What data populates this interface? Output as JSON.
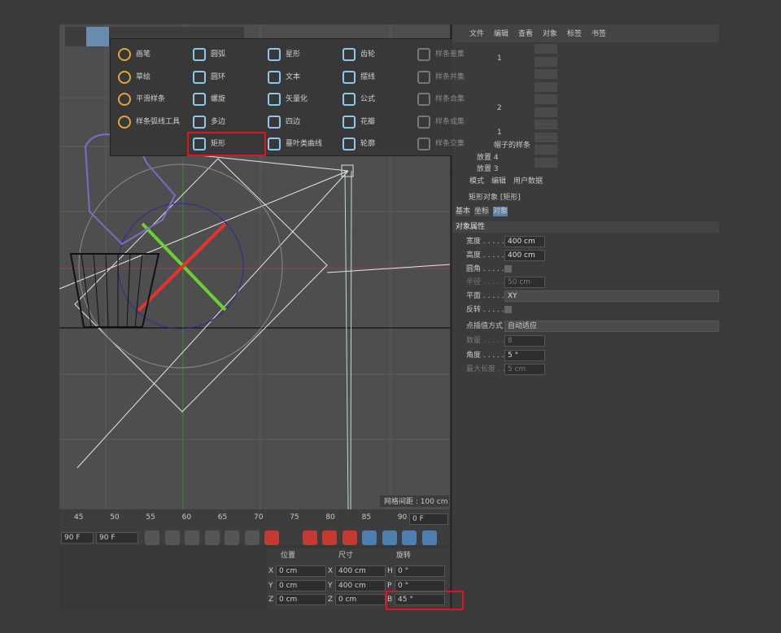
{
  "spline_menu": {
    "columns": [
      [
        "画笔",
        "草绘",
        "平滑样条",
        "样条弧线工具"
      ],
      [
        "圆弧",
        "圆环",
        "螺旋",
        "多边",
        "矩形"
      ],
      [
        "星形",
        "文本",
        "矢量化",
        "四边",
        "蔓叶类曲线"
      ],
      [
        "齿轮",
        "摆线",
        "公式",
        "花瓣",
        "轮廓"
      ],
      [
        "样条差集",
        "样条并集",
        "样条合集",
        "样条或集",
        "样条交集"
      ]
    ]
  },
  "object_manager": {
    "menu": [
      "文件",
      "编辑",
      "查看",
      "对象",
      "标签",
      "书签"
    ],
    "rows": [
      "1",
      "2",
      "1",
      "帽子的样条",
      "放置 4",
      "放置 3"
    ]
  },
  "attribute_manager": {
    "menu": [
      "模式",
      "编辑",
      "用户数据"
    ],
    "object_title": "矩形对象 [矩形]",
    "tabs": [
      "基本",
      "坐标",
      "对象"
    ],
    "section": "对象属性",
    "props": [
      {
        "label": "宽度 . . . . .",
        "value": "400 cm"
      },
      {
        "label": "高度 . . . . .",
        "value": "400 cm"
      },
      {
        "label": "圆角 . . . . .",
        "value": ""
      },
      {
        "label": "半径 . . . . .",
        "value": "50 cm"
      },
      {
        "label": "平面 . . . . .",
        "value": "XY"
      },
      {
        "label": "反转 . . . . .",
        "value": ""
      }
    ],
    "interp_label": "点插值方式",
    "interp_value": "自动适应",
    "props2": [
      {
        "label": "数量 . . . . .",
        "value": "8"
      },
      {
        "label": "角度 . . . . .",
        "value": "5 °"
      },
      {
        "label": "最大长度 . .",
        "value": "5 cm"
      }
    ]
  },
  "viewport": {
    "grid_spacing": "网格间距 : 100 cm"
  },
  "timeline": {
    "ticks": [
      "45",
      "50",
      "55",
      "60",
      "65",
      "70",
      "75",
      "80",
      "85",
      "90"
    ],
    "current": "0 F",
    "end_a": "90 F",
    "end_b": "90 F"
  },
  "coordinates": {
    "headers": [
      "位置",
      "尺寸",
      "旋转"
    ],
    "position": [
      {
        "axis": "X",
        "value": "0 cm"
      },
      {
        "axis": "Y",
        "value": "0 cm"
      },
      {
        "axis": "Z",
        "value": "0 cm"
      }
    ],
    "size": [
      {
        "axis": "X",
        "value": "400 cm"
      },
      {
        "axis": "Y",
        "value": "400 cm"
      },
      {
        "axis": "Z",
        "value": "0 cm"
      }
    ],
    "rotation": [
      {
        "axis": "H",
        "value": "0 °"
      },
      {
        "axis": "P",
        "value": "0 °"
      },
      {
        "axis": "B",
        "value": "45 °"
      }
    ]
  }
}
